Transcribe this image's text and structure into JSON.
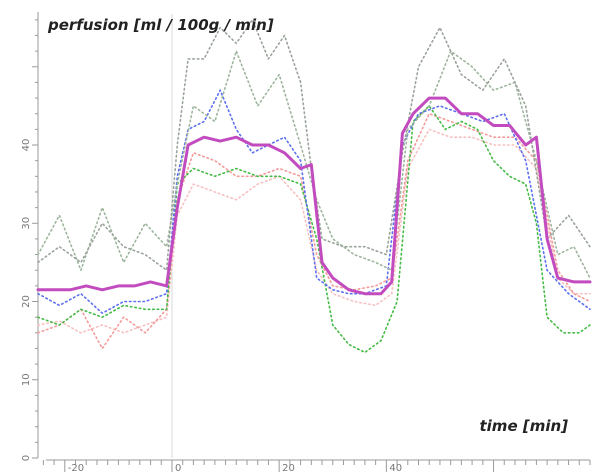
{
  "chart_data": {
    "type": "line",
    "title": "",
    "ylabel": "perfusion [ml / 100g / min]",
    "xlabel": "time [min]",
    "xlim": [
      -25,
      78
    ],
    "ylim": [
      0,
      57
    ],
    "xticks": [
      -20,
      0,
      20,
      40
    ],
    "yticks": [
      0,
      10,
      20,
      30,
      40
    ],
    "stimulus_on_marker_x": 0,
    "grid": false,
    "legend": "none",
    "series": [
      {
        "color": "#c24bbf",
        "style": "solid",
        "x": [
          -25,
          -22,
          -19,
          -16,
          -13,
          -10,
          -7,
          -4,
          -1,
          1,
          3,
          6,
          9,
          12,
          15,
          18,
          21,
          24,
          26,
          28,
          30,
          33,
          36,
          39,
          41,
          43,
          45,
          48,
          51,
          54,
          57,
          60,
          63,
          66,
          68,
          70,
          72,
          75,
          78
        ],
        "y": [
          21.5,
          21.5,
          21.5,
          22,
          21.5,
          22,
          22,
          22.5,
          22,
          32,
          40,
          41,
          40.5,
          41,
          40,
          40,
          39,
          37,
          37.5,
          25,
          23,
          21.5,
          21,
          21,
          22.5,
          41.5,
          44,
          46,
          46,
          44,
          44,
          42.5,
          42.5,
          40,
          41,
          28,
          23,
          22.5,
          22.5
        ]
      },
      {
        "color": "#9aa39a",
        "style": "dotted",
        "x": [
          -25,
          -21,
          -17,
          -13,
          -9,
          -5,
          -1,
          1,
          3,
          6,
          9,
          12,
          15,
          18,
          21,
          24,
          26,
          28,
          32,
          36,
          40,
          43,
          46,
          50,
          54,
          58,
          62,
          66,
          70,
          74,
          78
        ],
        "y": [
          25,
          27,
          25,
          30,
          27,
          26,
          24,
          40,
          51,
          51,
          55,
          53,
          56,
          51,
          54,
          48,
          37,
          28,
          27,
          27,
          26,
          39,
          50,
          55,
          49,
          47,
          51,
          45,
          28,
          31,
          27
        ]
      },
      {
        "color": "#9db59d",
        "style": "dotted",
        "x": [
          -25,
          -21,
          -17,
          -13,
          -9,
          -5,
          -1,
          1,
          4,
          8,
          12,
          16,
          20,
          24,
          27,
          30,
          34,
          38,
          41,
          44,
          48,
          52,
          56,
          60,
          64,
          68,
          72,
          75,
          78
        ],
        "y": [
          26,
          31,
          24,
          32,
          25,
          30,
          27,
          35,
          45,
          43,
          52,
          45,
          49,
          40,
          33,
          28,
          26,
          25,
          24,
          42,
          45,
          52,
          50,
          47,
          48,
          38,
          26,
          27,
          23
        ]
      },
      {
        "color": "#5b6ff0",
        "style": "dotted",
        "x": [
          -25,
          -21,
          -17,
          -13,
          -9,
          -5,
          -1,
          1,
          3,
          6,
          9,
          12,
          15,
          18,
          21,
          24,
          27,
          30,
          33,
          36,
          40,
          43,
          46,
          50,
          54,
          58,
          62,
          66,
          70,
          74,
          78
        ],
        "y": [
          21,
          19.5,
          21,
          18.5,
          20,
          20,
          21,
          36,
          42,
          43,
          47,
          42,
          39,
          40,
          41,
          38,
          23,
          21.5,
          21,
          21,
          22,
          40,
          44,
          45,
          44,
          43,
          44,
          38,
          24,
          21,
          19
        ]
      },
      {
        "color": "#44bb44",
        "style": "dotted",
        "x": [
          -25,
          -21,
          -17,
          -13,
          -9,
          -5,
          -1,
          1,
          4,
          8,
          12,
          16,
          20,
          24,
          27,
          30,
          33,
          36,
          39,
          42,
          45,
          48,
          51,
          54,
          57,
          60,
          63,
          66,
          68,
          70,
          73,
          76,
          78
        ],
        "y": [
          18,
          17,
          19,
          18,
          19.5,
          19,
          19,
          35,
          37,
          36,
          37,
          36,
          36,
          35,
          28,
          17,
          14.5,
          13.5,
          15,
          20,
          43,
          45,
          42,
          43,
          42,
          38,
          36,
          35,
          30,
          18,
          16,
          16,
          17
        ]
      },
      {
        "color": "#f39a9a",
        "style": "dotted",
        "x": [
          -25,
          -21,
          -17,
          -13,
          -9,
          -5,
          -1,
          1,
          4,
          8,
          12,
          16,
          20,
          24,
          27,
          30,
          34,
          38,
          41,
          44,
          48,
          52,
          56,
          60,
          64,
          68,
          72,
          75,
          78
        ],
        "y": [
          16,
          17,
          19,
          14,
          18,
          16,
          19,
          33,
          39,
          38,
          36,
          36,
          37,
          36,
          26,
          22,
          21.5,
          22,
          23,
          38,
          44,
          43,
          42,
          41,
          41,
          38,
          24,
          21,
          20
        ]
      },
      {
        "color": "#f7c0c0",
        "style": "dotted",
        "x": [
          -25,
          -21,
          -17,
          -13,
          -9,
          -5,
          -1,
          1,
          4,
          8,
          12,
          16,
          20,
          24,
          27,
          30,
          34,
          38,
          41,
          44,
          48,
          52,
          56,
          60,
          64,
          68,
          72,
          75,
          78
        ],
        "y": [
          17,
          17.5,
          16,
          17,
          16,
          17,
          18,
          31,
          35,
          34,
          33,
          35,
          36,
          33,
          24,
          21,
          20,
          19.5,
          21,
          37,
          42,
          41,
          41,
          40,
          40,
          37,
          23,
          21,
          21
        ]
      }
    ]
  }
}
